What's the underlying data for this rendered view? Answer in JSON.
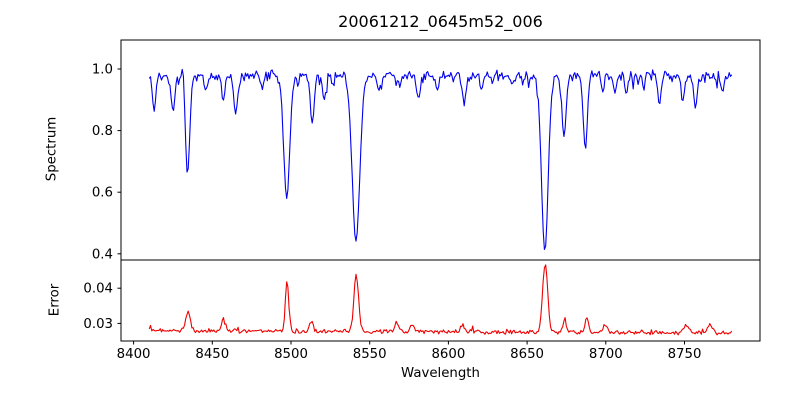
{
  "title": "20061212_0645m52_006",
  "chart_data": {
    "type": "line",
    "title": "20061212_0645m52_006",
    "xlabel": "Wavelength",
    "xlim": [
      8392,
      8798
    ],
    "x_start": 8410,
    "x_end": 8780,
    "n_points": 480,
    "noise_seed": 20061212,
    "grid": false,
    "legend": "none",
    "xticks": [
      {
        "v": 8400,
        "label": "8400"
      },
      {
        "v": 8450,
        "label": "8450"
      },
      {
        "v": 8500,
        "label": "8500"
      },
      {
        "v": 8550,
        "label": "8550"
      },
      {
        "v": 8600,
        "label": "8600"
      },
      {
        "v": 8650,
        "label": "8650"
      },
      {
        "v": 8700,
        "label": "8700"
      },
      {
        "v": 8750,
        "label": "8750"
      }
    ],
    "panels": [
      {
        "name": "spectrum",
        "ylabel": "Spectrum",
        "color": "#0000ee",
        "ylim": [
          0.38,
          1.094
        ],
        "yticks": [
          {
            "v": 1.0,
            "label": "1.0"
          },
          {
            "v": 0.8,
            "label": "0.8"
          },
          {
            "v": 0.6,
            "label": "0.6"
          },
          {
            "v": 0.4,
            "label": "0.4"
          }
        ],
        "continuum": 0.978,
        "noise_amp": 0.02,
        "dip_prob": 0.07,
        "dip_amp": 0.04,
        "absorption_lines": [
          {
            "center": 8413.0,
            "min": 0.86,
            "sigma": 1.0
          },
          {
            "center": 8425.0,
            "min": 0.87,
            "sigma": 1.2
          },
          {
            "center": 8434.3,
            "min": 0.66,
            "sigma": 1.4
          },
          {
            "center": 8446.0,
            "min": 0.93,
            "sigma": 1.0
          },
          {
            "center": 8457.0,
            "min": 0.9,
            "sigma": 1.0
          },
          {
            "center": 8465.0,
            "min": 0.86,
            "sigma": 1.3
          },
          {
            "center": 8482.0,
            "min": 0.94,
            "sigma": 0.9
          },
          {
            "center": 8497.3,
            "min": 0.58,
            "sigma": 1.9
          },
          {
            "center": 8513.5,
            "min": 0.82,
            "sigma": 1.2
          },
          {
            "center": 8521.0,
            "min": 0.9,
            "sigma": 0.9
          },
          {
            "center": 8541.3,
            "min": 0.44,
            "sigma": 2.4
          },
          {
            "center": 8556.0,
            "min": 0.93,
            "sigma": 1.0
          },
          {
            "center": 8569.0,
            "min": 0.94,
            "sigma": 0.9
          },
          {
            "center": 8581.0,
            "min": 0.9,
            "sigma": 1.1
          },
          {
            "center": 8593.0,
            "min": 0.935,
            "sigma": 0.9
          },
          {
            "center": 8610.0,
            "min": 0.885,
            "sigma": 1.1
          },
          {
            "center": 8621.0,
            "min": 0.93,
            "sigma": 0.9
          },
          {
            "center": 8640.0,
            "min": 0.95,
            "sigma": 0.9
          },
          {
            "center": 8661.3,
            "min": 0.41,
            "sigma": 2.1
          },
          {
            "center": 8673.5,
            "min": 0.78,
            "sigma": 1.3
          },
          {
            "center": 8687.0,
            "min": 0.74,
            "sigma": 1.3
          },
          {
            "center": 8698.0,
            "min": 0.93,
            "sigma": 0.9
          },
          {
            "center": 8706.0,
            "min": 0.92,
            "sigma": 0.9
          },
          {
            "center": 8713.0,
            "min": 0.92,
            "sigma": 1.0
          },
          {
            "center": 8724.0,
            "min": 0.94,
            "sigma": 0.9
          },
          {
            "center": 8734.0,
            "min": 0.89,
            "sigma": 1.1
          },
          {
            "center": 8749.0,
            "min": 0.89,
            "sigma": 1.0
          },
          {
            "center": 8757.0,
            "min": 0.875,
            "sigma": 1.1
          },
          {
            "center": 8774.0,
            "min": 0.93,
            "sigma": 1.0
          }
        ],
        "emission_spikes": [
          {
            "center": 8431.5,
            "amp": 0.075,
            "sigma": 0.6
          }
        ]
      },
      {
        "name": "error",
        "ylabel": "Error",
        "color": "#ee0000",
        "ylim": [
          0.025,
          0.048
        ],
        "yticks": [
          {
            "v": 0.04,
            "label": "0.04"
          },
          {
            "v": 0.03,
            "label": "0.03"
          }
        ],
        "baseline_start": 0.028,
        "baseline_end": 0.0272,
        "noise_amp": 0.0007,
        "bump_prob": 0.06,
        "bump_amp": 0.0012,
        "spikes": [
          {
            "center": 8434.5,
            "peak": 0.0335,
            "sigma": 1.4
          },
          {
            "center": 8457.0,
            "peak": 0.031,
            "sigma": 1.1
          },
          {
            "center": 8497.5,
            "peak": 0.0415,
            "sigma": 1.1
          },
          {
            "center": 8513.0,
            "peak": 0.0305,
            "sigma": 1.1
          },
          {
            "center": 8541.5,
            "peak": 0.0437,
            "sigma": 1.5
          },
          {
            "center": 8567.0,
            "peak": 0.0306,
            "sigma": 1.1
          },
          {
            "center": 8577.0,
            "peak": 0.03,
            "sigma": 1.2
          },
          {
            "center": 8609.0,
            "peak": 0.0297,
            "sigma": 1.2
          },
          {
            "center": 8661.5,
            "peak": 0.0471,
            "sigma": 1.6
          },
          {
            "center": 8674.0,
            "peak": 0.031,
            "sigma": 1.1
          },
          {
            "center": 8688.0,
            "peak": 0.0313,
            "sigma": 1.1
          },
          {
            "center": 8700.0,
            "peak": 0.0295,
            "sigma": 1.2
          },
          {
            "center": 8751.0,
            "peak": 0.0297,
            "sigma": 1.8
          },
          {
            "center": 8766.0,
            "peak": 0.0299,
            "sigma": 1.5
          }
        ]
      }
    ]
  }
}
